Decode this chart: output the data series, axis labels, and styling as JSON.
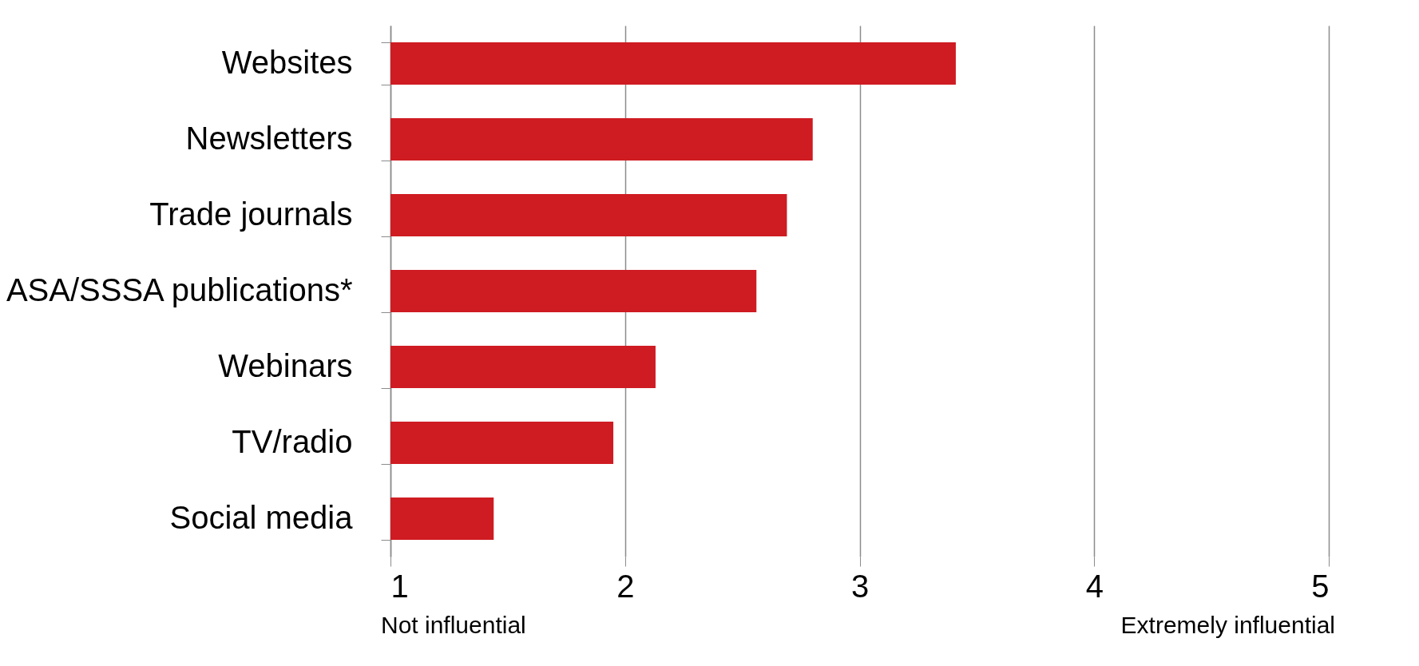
{
  "chart_data": {
    "type": "bar",
    "orientation": "horizontal",
    "categories": [
      "Websites",
      "Newsletters",
      "Trade journals",
      "ASA/SSSA publications*",
      "Webinars",
      "TV/radio",
      "Social media"
    ],
    "values": [
      3.41,
      2.8,
      2.69,
      2.56,
      2.13,
      1.95,
      1.44
    ],
    "color": "#cf1b22",
    "xlim": [
      1,
      5
    ],
    "xticks": [
      1,
      2,
      3,
      4,
      5
    ],
    "grid": "x",
    "annotations": [
      "Not influential",
      "Extremely influential"
    ]
  }
}
